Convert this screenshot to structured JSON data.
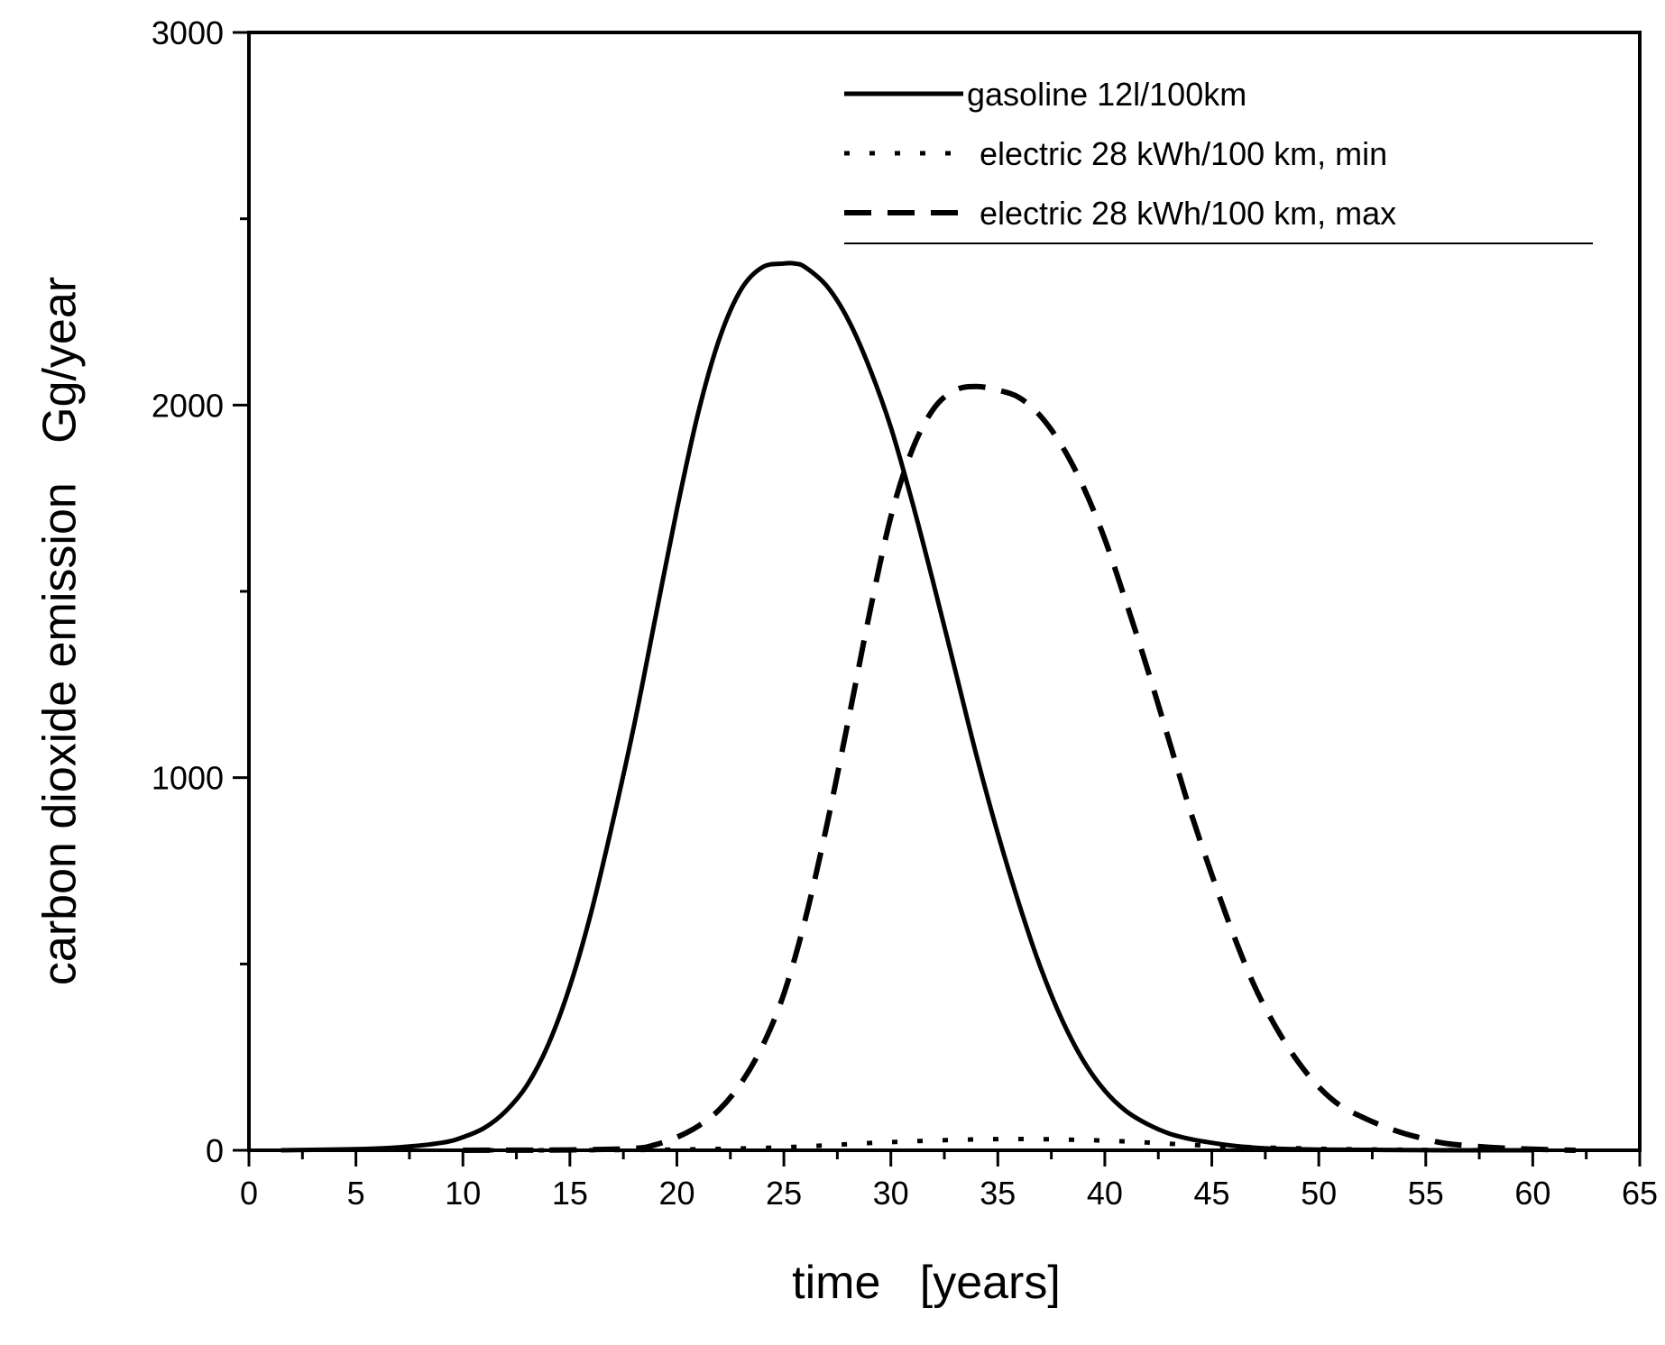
{
  "chart_data": {
    "type": "line",
    "title": "",
    "xlabel": "time   [years]",
    "ylabel": "carbon dioxide emission   Gg/year",
    "xlim": [
      0,
      65
    ],
    "ylim": [
      0,
      3000
    ],
    "x_ticks": [
      0,
      5,
      10,
      15,
      20,
      25,
      30,
      35,
      40,
      45,
      50,
      55,
      60,
      65
    ],
    "y_ticks": [
      0,
      1000,
      2000,
      3000
    ],
    "x_tick_labels": [
      "0",
      "5",
      "10",
      "15",
      "20",
      "25",
      "30",
      "35",
      "40",
      "45",
      "50",
      "55",
      "60",
      "65"
    ],
    "y_tick_labels": [
      "0",
      "1000",
      "2000",
      "3000"
    ],
    "legend_position": "top-right",
    "series": [
      {
        "name": "gasoline 12l/100km",
        "style": "solid",
        "x": [
          1.5,
          5,
          7,
          9,
          10,
          11,
          12,
          13,
          14,
          15,
          16,
          17,
          18,
          19,
          20,
          21,
          22,
          23,
          24,
          25,
          25.5,
          26,
          27,
          28,
          29,
          30,
          31,
          32,
          33,
          34,
          35,
          36,
          37,
          38,
          39,
          40,
          41,
          42,
          43,
          44,
          45,
          46,
          47,
          48,
          50,
          53,
          56,
          60
        ],
        "values": [
          0,
          3,
          8,
          20,
          35,
          60,
          105,
          175,
          285,
          440,
          640,
          880,
          1140,
          1430,
          1720,
          1980,
          2180,
          2310,
          2370,
          2380,
          2380,
          2370,
          2320,
          2230,
          2100,
          1940,
          1740,
          1520,
          1290,
          1060,
          850,
          660,
          490,
          350,
          240,
          160,
          105,
          70,
          45,
          30,
          20,
          12,
          7,
          4,
          2,
          1,
          0,
          0
        ]
      },
      {
        "name": "electric 28 kWh/100 km, min",
        "style": "dotted",
        "x": [
          10,
          15,
          20,
          25,
          30,
          35,
          40,
          45,
          50,
          55,
          60
        ],
        "values": [
          0,
          0,
          2,
          8,
          22,
          30,
          26,
          12,
          4,
          1,
          0
        ]
      },
      {
        "name": "electric 28 kWh/100 km, max",
        "style": "dashed",
        "x": [
          10,
          15,
          18,
          19,
          20,
          21,
          22,
          23,
          24,
          25,
          26,
          27,
          28,
          29,
          30,
          31,
          32,
          33,
          34,
          35,
          36,
          37,
          38,
          39,
          40,
          41,
          42,
          43,
          44,
          45,
          46,
          47,
          48,
          49,
          50,
          51,
          52,
          53,
          54,
          55,
          56,
          58,
          60,
          62
        ],
        "values": [
          0,
          1,
          5,
          15,
          35,
          65,
          110,
          180,
          280,
          420,
          620,
          870,
          1150,
          1440,
          1700,
          1880,
          1990,
          2040,
          2050,
          2040,
          2020,
          1970,
          1890,
          1780,
          1640,
          1470,
          1290,
          1100,
          910,
          740,
          580,
          440,
          330,
          240,
          170,
          120,
          90,
          65,
          45,
          30,
          18,
          8,
          3,
          0
        ]
      }
    ]
  }
}
